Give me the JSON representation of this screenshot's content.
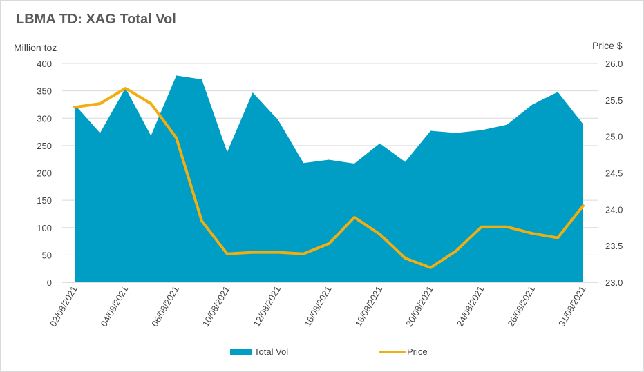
{
  "chart_data": {
    "type": "area",
    "title": "LBMA TD: XAG Total Vol",
    "ylabel": "Million toz",
    "y2label": "Price $",
    "x": [
      "02/08/2021",
      "03/08/2021",
      "04/08/2021",
      "05/08/2021",
      "06/08/2021",
      "09/08/2021",
      "10/08/2021",
      "11/08/2021",
      "12/08/2021",
      "13/08/2021",
      "16/08/2021",
      "17/08/2021",
      "18/08/2021",
      "19/08/2021",
      "20/08/2021",
      "23/08/2021",
      "24/08/2021",
      "25/08/2021",
      "26/08/2021",
      "27/08/2021",
      "31/08/2021"
    ],
    "x_tick_labels": [
      "02/08/2021",
      "04/08/2021",
      "06/08/2021",
      "10/08/2021",
      "12/08/2021",
      "16/08/2021",
      "18/08/2021",
      "20/08/2021",
      "24/08/2021",
      "26/08/2021",
      "31/08/2021"
    ],
    "ylim": [
      0,
      400
    ],
    "yticks": [
      0,
      50,
      100,
      150,
      200,
      250,
      300,
      350,
      400
    ],
    "y2lim": [
      23.0,
      26.0
    ],
    "y2ticks": [
      "23.0",
      "23.5",
      "24.0",
      "24.5",
      "25.0",
      "25.5",
      "26.0"
    ],
    "grid": true,
    "legend_position": "bottom",
    "series": [
      {
        "name": "Total Vol",
        "kind": "area",
        "axis": "left",
        "color": "#009dc4",
        "values": [
          325,
          273,
          355,
          268,
          378,
          371,
          238,
          347,
          297,
          218,
          224,
          217,
          254,
          220,
          277,
          273,
          278,
          288,
          325,
          348,
          289
        ]
      },
      {
        "name": "Price",
        "kind": "line",
        "axis": "right",
        "color": "#f2ae10",
        "values": [
          25.4,
          25.45,
          25.66,
          25.45,
          24.98,
          23.84,
          23.39,
          23.41,
          23.41,
          23.39,
          23.53,
          23.89,
          23.66,
          23.33,
          23.2,
          23.43,
          23.76,
          23.76,
          23.67,
          23.61,
          24.05
        ]
      }
    ]
  }
}
